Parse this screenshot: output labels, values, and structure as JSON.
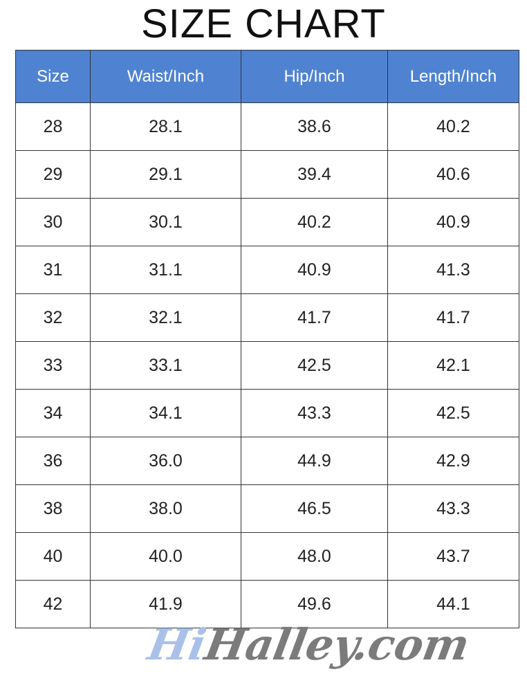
{
  "title": "SIZE CHART",
  "colors": {
    "header_bg": "#4f83d1",
    "header_text": "#ffffff",
    "watermark_hi": "#a9c1e8",
    "watermark_rest": "#7b7b7b"
  },
  "table": {
    "headers": [
      "Size",
      "Waist/Inch",
      "Hip/Inch",
      "Length/Inch"
    ],
    "rows": [
      [
        "28",
        "28.1",
        "38.6",
        "40.2"
      ],
      [
        "29",
        "29.1",
        "39.4",
        "40.6"
      ],
      [
        "30",
        "30.1",
        "40.2",
        "40.9"
      ],
      [
        "31",
        "31.1",
        "40.9",
        "41.3"
      ],
      [
        "32",
        "32.1",
        "41.7",
        "41.7"
      ],
      [
        "33",
        "33.1",
        "42.5",
        "42.1"
      ],
      [
        "34",
        "34.1",
        "43.3",
        "42.5"
      ],
      [
        "36",
        "36.0",
        "44.9",
        "42.9"
      ],
      [
        "38",
        "38.0",
        "46.5",
        "43.3"
      ],
      [
        "40",
        "40.0",
        "48.0",
        "43.7"
      ],
      [
        "42",
        "41.9",
        "49.6",
        "44.1"
      ]
    ]
  },
  "watermark": {
    "hi": "Hi",
    "rest": "Halley.com"
  }
}
